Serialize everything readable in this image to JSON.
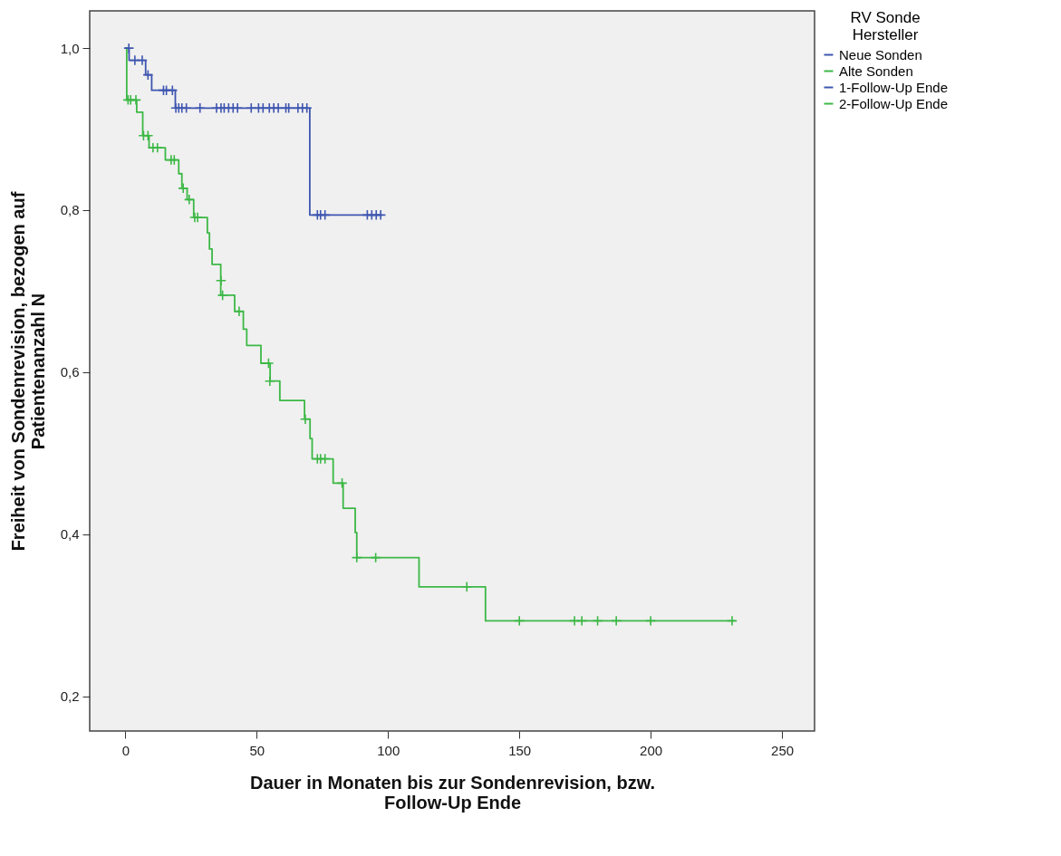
{
  "chart_data": {
    "type": "step",
    "xlabel": "Dauer in Monaten bis zur Sondenrevision, bzw. Follow-Up Ende",
    "ylabel": "Freiheit von Sondenrevision, bezogen auf Patientenanzahl N",
    "legend_title": "RV Sonde Hersteller",
    "legend": "top right",
    "grid": false,
    "xlim": [
      -13.6,
      262.4
    ],
    "xticks": [
      0,
      50,
      100,
      150,
      200,
      250
    ],
    "ylim": [
      0.157,
      1.046
    ],
    "yticks": [
      {
        "value": 0.2,
        "label": "0,2"
      },
      {
        "value": 0.4,
        "label": "0,4"
      },
      {
        "value": 0.6,
        "label": "0,6"
      },
      {
        "value": 0.8,
        "label": "0,8"
      },
      {
        "value": 1.0,
        "label": "1,0"
      }
    ],
    "series": [
      {
        "name": "Neue Sonden",
        "marker": "none",
        "color": "#3f56b0",
        "x": [
          0,
          1.4,
          7.7,
          10,
          19,
          70.2,
          97.7
        ],
        "values": [
          1.0,
          0.985,
          0.967,
          0.948,
          0.926,
          0.794,
          0.794
        ]
      },
      {
        "name": "Alte Sonden",
        "marker": "none",
        "color": "#3cb846",
        "x": [
          0,
          0.5,
          4.3,
          6.6,
          9,
          15.2,
          20.3,
          21.5,
          23.5,
          26,
          31.2,
          32,
          33,
          36.3,
          41.6,
          44.9,
          46.2,
          51.6,
          55.1,
          58.8,
          68.2,
          70.3,
          71.1,
          79.1,
          82.9,
          87.5,
          88.1,
          111.8,
          137.1,
          232.1
        ],
        "values": [
          1.0,
          0.936,
          0.921,
          0.892,
          0.877,
          0.862,
          0.845,
          0.827,
          0.813,
          0.791,
          0.772,
          0.752,
          0.733,
          0.695,
          0.675,
          0.653,
          0.633,
          0.611,
          0.589,
          0.565,
          0.542,
          0.518,
          0.493,
          0.463,
          0.432,
          0.402,
          0.371,
          0.335,
          0.293,
          0.293
        ]
      },
      {
        "name": "1-Follow-Up Ende",
        "type": "scatter",
        "marker": "cross",
        "color": "#3f56b0",
        "x": [
          1.3,
          3.6,
          6.4,
          8.6,
          14.5,
          15.6,
          17.9,
          19.2,
          20.3,
          21.5,
          23.2,
          28.4,
          34.7,
          36.4,
          37.6,
          39.3,
          41.0,
          42.7,
          47.9,
          50.7,
          52.4,
          54.8,
          56.5,
          58.2,
          61.1,
          62.2,
          65.7,
          67.4,
          69.1,
          73.1,
          74.3,
          76.0,
          92.1,
          93.8,
          95.5,
          97.2
        ],
        "values": [
          1.0,
          0.985,
          0.985,
          0.967,
          0.948,
          0.948,
          0.948,
          0.926,
          0.926,
          0.926,
          0.926,
          0.926,
          0.926,
          0.926,
          0.926,
          0.926,
          0.926,
          0.926,
          0.926,
          0.926,
          0.926,
          0.926,
          0.926,
          0.926,
          0.926,
          0.926,
          0.926,
          0.926,
          0.926,
          0.794,
          0.794,
          0.794,
          0.794,
          0.794,
          0.794,
          0.794
        ]
      },
      {
        "name": "2-Follow-Up Ende",
        "type": "scatter",
        "marker": "cross",
        "color": "#3cb846",
        "x": [
          1.0,
          2.0,
          4.0,
          6.9,
          8.6,
          10.5,
          12.2,
          17.4,
          18.6,
          22.0,
          24.3,
          26.4,
          27.5,
          36.4,
          37.0,
          43.3,
          54.5,
          55.0,
          68.5,
          73.1,
          74.3,
          76.0,
          82.5,
          88.1,
          95.3,
          130.0,
          150.0,
          171.0,
          173.8,
          179.8,
          186.9,
          200.0,
          231.0
        ],
        "values": [
          0.936,
          0.936,
          0.936,
          0.892,
          0.892,
          0.877,
          0.877,
          0.862,
          0.862,
          0.827,
          0.813,
          0.791,
          0.791,
          0.713,
          0.695,
          0.675,
          0.611,
          0.589,
          0.542,
          0.493,
          0.493,
          0.493,
          0.463,
          0.371,
          0.371,
          0.335,
          0.293,
          0.293,
          0.293,
          0.293,
          0.293,
          0.293,
          0.293
        ]
      }
    ]
  }
}
